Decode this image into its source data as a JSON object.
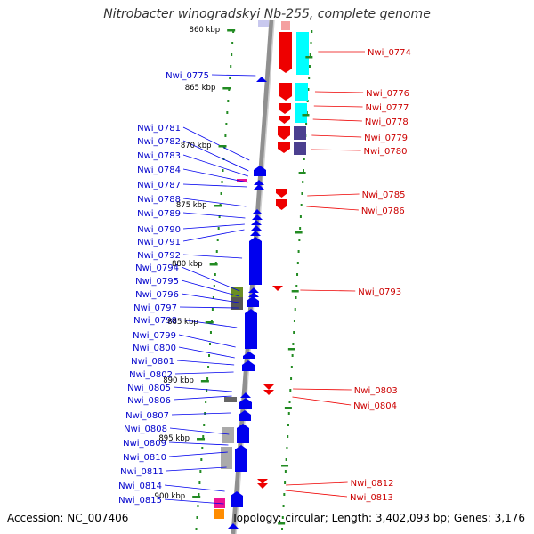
{
  "title": "Nitrobacter winogradskyi Nb-255, complete genome",
  "footer": {
    "accession": "Accession: NC_007406",
    "info": "Topology: circular; Length: 3,402,093 bp; Genes: 3,176"
  },
  "scale": [
    {
      "label": "860 kbp"
    },
    {
      "label": "865 kbp"
    },
    {
      "label": "870 kbp"
    },
    {
      "label": "875 kbp"
    },
    {
      "label": "880 kbp"
    },
    {
      "label": "885 kbp"
    },
    {
      "label": "890 kbp"
    },
    {
      "label": "895 kbp"
    },
    {
      "label": "900 kbp"
    }
  ],
  "left_labels": [
    "Nwi_0775",
    "Nwi_0781",
    "Nwi_0782",
    "Nwi_0783",
    "Nwi_0784",
    "Nwi_0787",
    "Nwi_0788",
    "Nwi_0789",
    "Nwi_0790",
    "Nwi_0791",
    "Nwi_0792",
    "Nwi_0794",
    "Nwi_0795",
    "Nwi_0796",
    "Nwi_0797",
    "Nwi_0798",
    "Nwi_0799",
    "Nwi_0800",
    "Nwi_0801",
    "Nwi_0802",
    "Nwi_0805",
    "Nwi_0806",
    "Nwi_0807",
    "Nwi_0808",
    "Nwi_0809",
    "Nwi_0810",
    "Nwi_0811",
    "Nwi_0814",
    "Nwi_0815"
  ],
  "right_labels": [
    "Nwi_0774",
    "Nwi_0776",
    "Nwi_0777",
    "Nwi_0778",
    "Nwi_0779",
    "Nwi_0780",
    "Nwi_0785",
    "Nwi_0786",
    "Nwi_0793",
    "Nwi_0803",
    "Nwi_0804",
    "Nwi_0812",
    "Nwi_0813"
  ],
  "colors": {
    "reverse_strand": "#0000ee",
    "forward_strand": "#ee0000",
    "backbone": "#999999",
    "tick": "#228b22",
    "cyan_feature": "#00ffff",
    "purple_feature": "#4b3f8f",
    "gray_feature": "#aaaaaa"
  }
}
